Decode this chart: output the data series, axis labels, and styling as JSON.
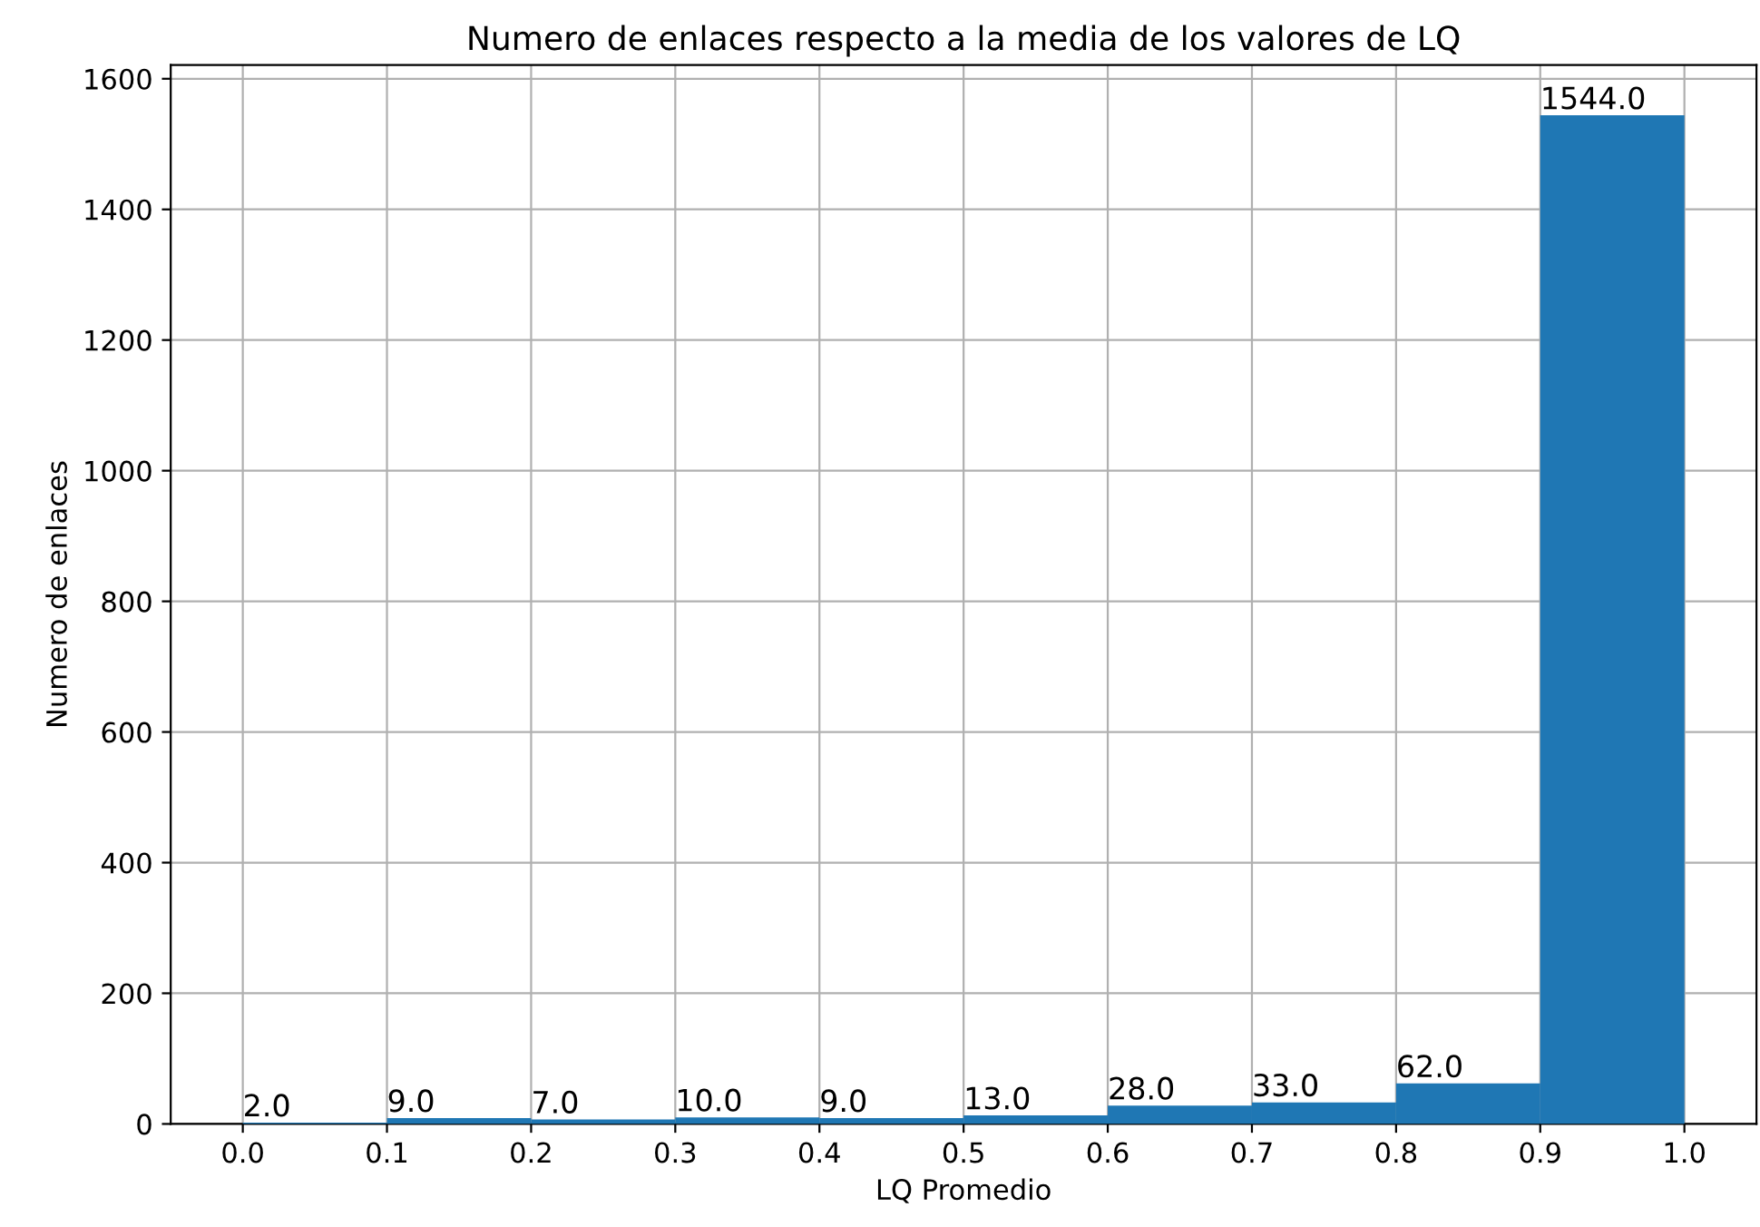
{
  "chart_data": {
    "type": "histogram",
    "title": "Numero de enlaces respecto a la media de los valores de LQ",
    "xlabel": "LQ Promedio",
    "ylabel": "Numero de enlaces",
    "bins": [
      0.0,
      0.1,
      0.2,
      0.3,
      0.4,
      0.5,
      0.6,
      0.7,
      0.8,
      0.9,
      1.0
    ],
    "values": [
      2,
      9,
      7,
      10,
      9,
      13,
      28,
      33,
      62,
      1544
    ],
    "value_labels": [
      "2.0",
      "9.0",
      "7.0",
      "10.0",
      "9.0",
      "13.0",
      "28.0",
      "33.0",
      "62.0",
      "1544.0"
    ],
    "color": "#1f77b4",
    "xlim": [
      -0.05,
      1.05
    ],
    "ylim": [
      0,
      1621
    ],
    "xticks": [
      {
        "value": 0.0,
        "label": "0.0"
      },
      0.1,
      0.2,
      0.3,
      0.4,
      0.5,
      0.6,
      0.7,
      0.8,
      0.9,
      {
        "value": 1.0,
        "label": "1.0"
      }
    ],
    "yticks": [
      0,
      200,
      400,
      600,
      800,
      1000,
      1200,
      1400,
      1600
    ],
    "grid": true
  }
}
